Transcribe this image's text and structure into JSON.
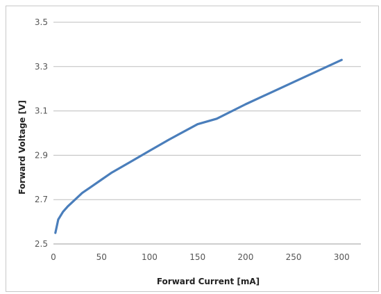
{
  "chart_data": {
    "type": "line",
    "title": "",
    "xlabel": "Forward Current [mA]",
    "ylabel": "Forward Voltage [V]",
    "xlim": [
      0,
      320
    ],
    "ylim": [
      2.5,
      3.5
    ],
    "x_ticks": [
      "0",
      "50",
      "100",
      "150",
      "200",
      "250",
      "300"
    ],
    "y_ticks": [
      "2.5",
      "2.7",
      "2.9",
      "3.1",
      "3.3",
      "3.5"
    ],
    "grid": true,
    "legend": "none",
    "series": [
      {
        "color": "#4a7ebb",
        "x": [
          2,
          5,
          10,
          15,
          20,
          30,
          40,
          50,
          60,
          80,
          100,
          120,
          150,
          170,
          200,
          250,
          300
        ],
        "y": [
          2.55,
          2.61,
          2.645,
          2.67,
          2.69,
          2.73,
          2.76,
          2.79,
          2.82,
          2.87,
          2.92,
          2.97,
          3.04,
          3.065,
          3.13,
          3.23,
          3.33
        ]
      }
    ]
  }
}
